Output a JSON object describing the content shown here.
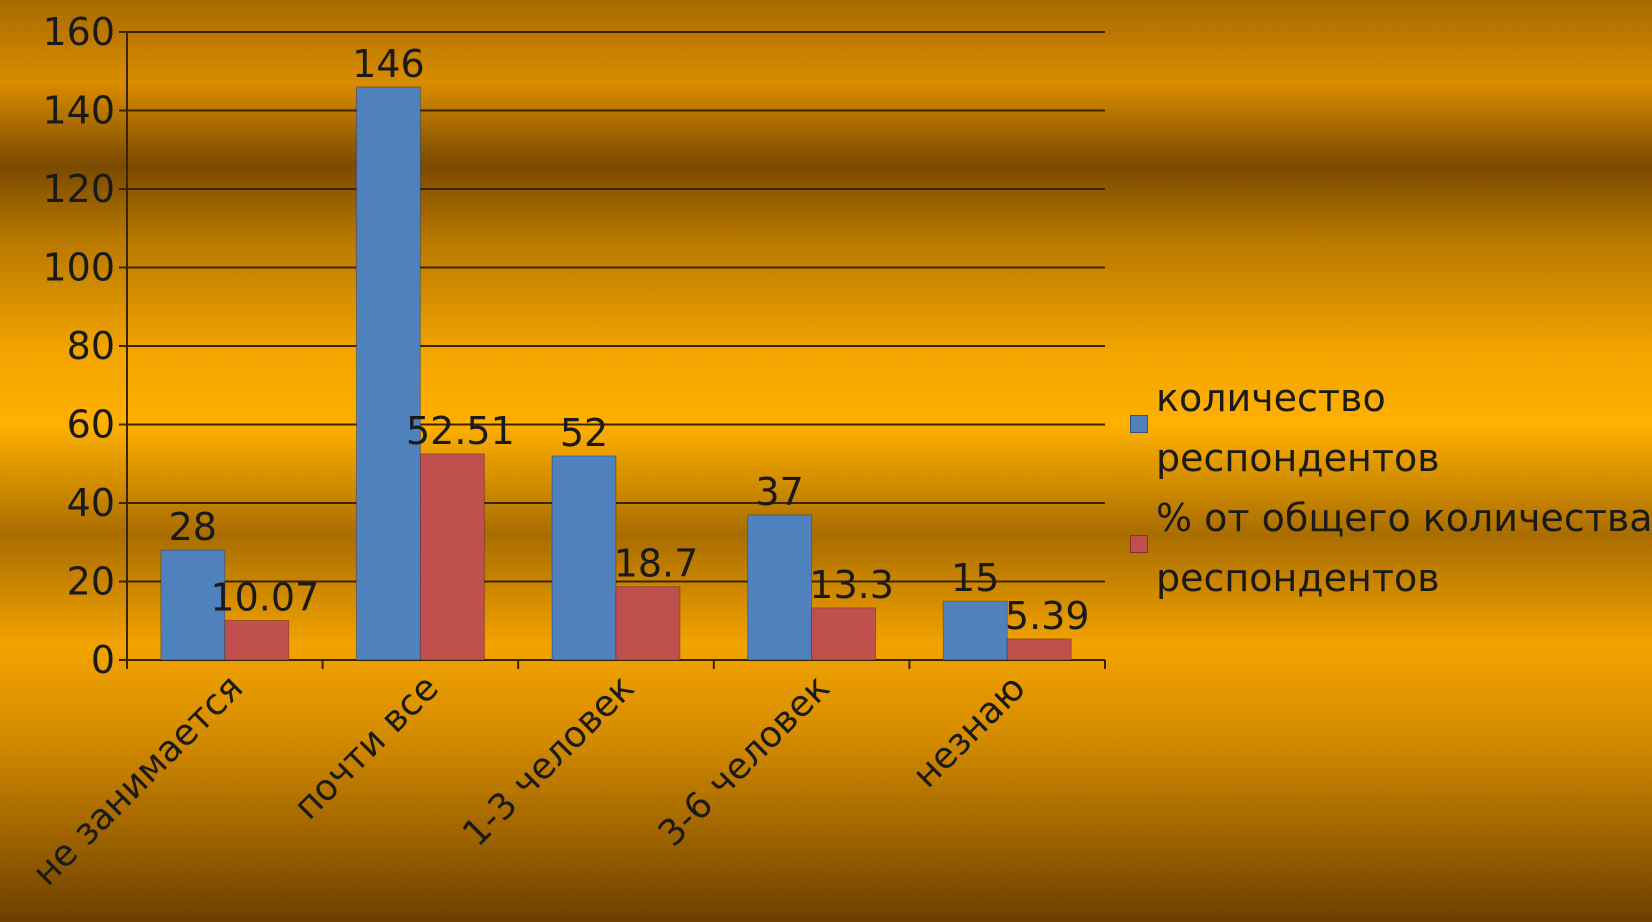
{
  "chart_data": {
    "type": "bar",
    "categories": [
      "не занимается",
      "почти все",
      "1-3 человек",
      "3-6 человек",
      "незнаю"
    ],
    "series": [
      {
        "name": "количество респондентов",
        "values": [
          28,
          146,
          52,
          37,
          15
        ],
        "labels": [
          "28",
          "146",
          "52",
          "37",
          "15"
        ],
        "color": "#4f81bd"
      },
      {
        "name": "% от общего количества респондентов",
        "values": [
          10.07,
          52.51,
          18.7,
          13.3,
          5.39
        ],
        "labels": [
          "10.07",
          "52.51",
          "18.7",
          "13.3",
          "5.39"
        ],
        "color": "#c0504d"
      }
    ],
    "y_ticks": [
      "0",
      "20",
      "40",
      "60",
      "80",
      "100",
      "120",
      "140",
      "160"
    ],
    "ylim": [
      0,
      160
    ],
    "grid": true,
    "legend_position": "right"
  }
}
